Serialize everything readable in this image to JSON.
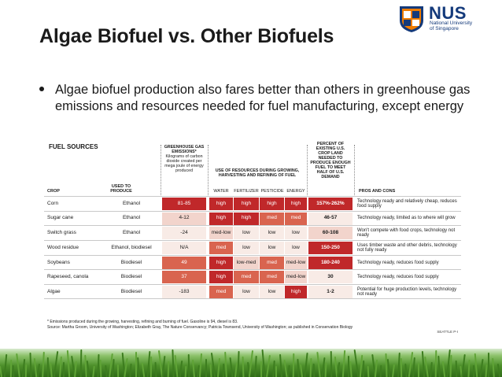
{
  "slide": {
    "title": "Algae Biofuel vs. Other Biofuels",
    "bullet": "Algae biofuel production also fares better than others in greenhouse gas emissions and resources needed for fuel manufacturing, except energy"
  },
  "logo": {
    "name": "NUS",
    "subtitle_line1": "National University",
    "subtitle_line2": "of Singapore",
    "icon": "nus-shield-icon"
  },
  "figure": {
    "fuel_sources_label": "FUEL SOURCES",
    "headers": {
      "ghg_title": "GREENHOUSE GAS EMISSIONS*",
      "ghg_sub": "Kilograms of carbon dioxide created per mega joule of energy produced",
      "resources": "USE OF RESOURCES DURING GROWING, HARVESTING AND REFINING OF FUEL",
      "demand": "PERCENT OF EXISTING U.S. CROP LAND NEEDED TO PRODUCE ENOUGH FUEL TO MEET HALF OF U.S. DEMAND"
    },
    "columns": {
      "crop": "CROP",
      "used_to_produce": "USED TO PRODUCE",
      "water": "WATER",
      "fertilizer": "FERTILIZER",
      "pesticide": "PESTICIDE",
      "energy": "ENERGY",
      "pros_cons": "PROS AND CONS"
    },
    "rows": [
      {
        "crop": "Corn",
        "produce": "Ethanol",
        "ghg": "81-85",
        "water": "high",
        "fertilizer": "high",
        "pesticide": "high",
        "energy": "high",
        "demand": "157%-262%",
        "pros": "Technology ready and relatively cheap, reduces food supply"
      },
      {
        "crop": "Sugar cane",
        "produce": "Ethanol",
        "ghg": "4-12",
        "water": "high",
        "fertilizer": "high",
        "pesticide": "med",
        "energy": "med",
        "demand": "46-57",
        "pros": "Technology ready, limited as to where will grow"
      },
      {
        "crop": "Switch grass",
        "produce": "Ethanol",
        "ghg": "-24",
        "water": "med-low",
        "fertilizer": "low",
        "pesticide": "low",
        "energy": "low",
        "demand": "60-108",
        "pros": "Won't compete with food crops, technology not ready"
      },
      {
        "crop": "Wood residue",
        "produce": "Ethanol, biodiesel",
        "ghg": "N/A",
        "water": "med",
        "fertilizer": "low",
        "pesticide": "low",
        "energy": "low",
        "demand": "150-250",
        "pros": "Uses timber waste and other debris, technology not fully ready"
      },
      {
        "crop": "Soybeans",
        "produce": "Biodiesel",
        "ghg": "49",
        "water": "high",
        "fertilizer": "low-med",
        "pesticide": "med",
        "energy": "med-low",
        "demand": "180-240",
        "pros": "Technology ready, reduces food supply"
      },
      {
        "crop": "Rapeseed, canola",
        "produce": "Biodiesel",
        "ghg": "37",
        "water": "high",
        "fertilizer": "med",
        "pesticide": "med",
        "energy": "med-low",
        "demand": "30",
        "pros": "Technology ready, reduces food supply"
      },
      {
        "crop": "Algae",
        "produce": "Biodiesel",
        "ghg": "-183",
        "water": "med",
        "fertilizer": "low",
        "pesticide": "low",
        "energy": "high",
        "demand": "1-2",
        "pros": "Potential for huge production levels, technology not ready"
      }
    ],
    "footnote_1": "* Emissions produced during the growing, harvesting, refining and burning of fuel. Gasoline is 94, diesel is 83.",
    "footnote_2": "Source: Martha Groom, University of Washington; Elizabeth Gray, The Nature Conservancy; Patricia Townsend, University of Washington; as published in Conservation Biology",
    "credit": "SEATTLE P-I"
  },
  "colors": {
    "high_red": "#c0282a",
    "med_red": "#d9644f",
    "low_pink": "#f2d4cc",
    "pale": "#f8ebe6",
    "accent_text": "#1a1a1a",
    "nus_blue": "#143a7b",
    "nus_orange": "#ef7c00"
  }
}
